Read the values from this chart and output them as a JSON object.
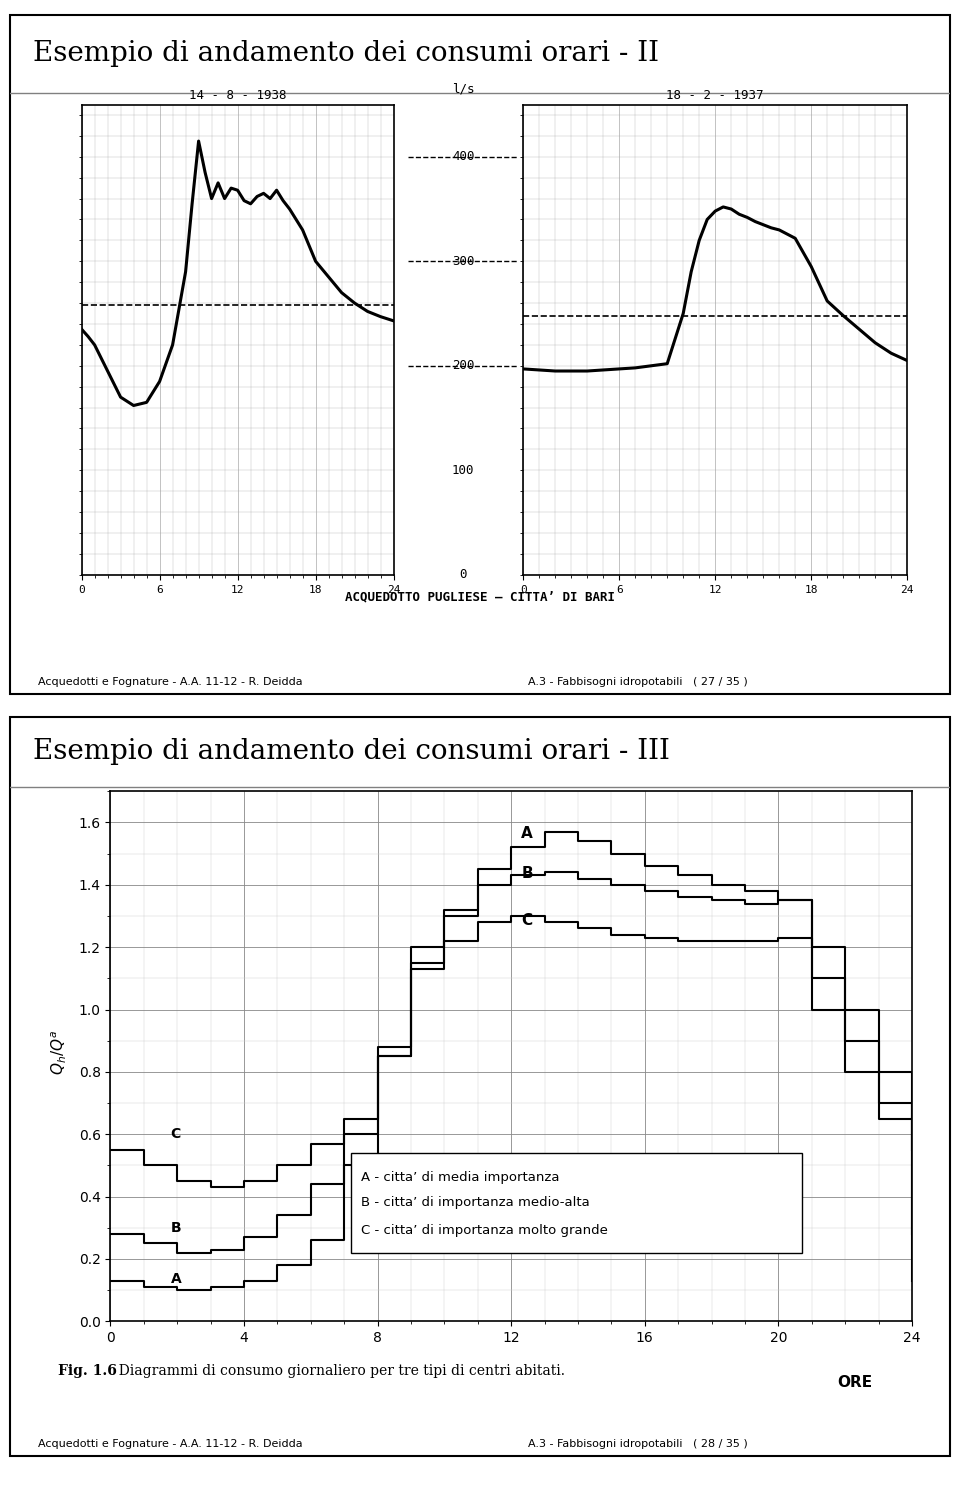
{
  "title1": "Esempio di andamento dei consumi orari - II",
  "title2": "Esempio di andamento dei consumi orari - III",
  "subtitle1_left": "14 - 8 - 1938",
  "subtitle1_right": "18 - 2 - 1937",
  "yunit": "l/s",
  "xlabel_bottom": "ACQUEDOTTO PUGLIESE – CITTA’ DI BARI",
  "footer1_left": "Acquedotti e Fognature - A.A. 11-12 - R. Deidda",
  "footer1_right": "A.3 - Fabbisogni idropotabili   ( 27 / 35 )",
  "footer2_left": "Acquedotti e Fognature - A.A. 11-12 - R. Deidda",
  "footer2_right": "A.3 - Fabbisogni idropotabili   ( 28 / 35 )",
  "fig_caption_bold": "Fig. 1.6",
  "fig_caption_normal": "  Diagrammi di consumo giornaliero per tre tipi di centri abitati.",
  "yticks_upper": [
    0,
    100,
    200,
    300,
    400
  ],
  "xticks_upper": [
    0,
    6,
    12,
    18,
    24
  ],
  "curve1_x": [
    0,
    0.5,
    1,
    2,
    3,
    4,
    5,
    6,
    7,
    8,
    8.5,
    9,
    9.5,
    10,
    10.5,
    11,
    11.5,
    12,
    12.5,
    13,
    13.5,
    14,
    14.5,
    15,
    15.5,
    16,
    17,
    18,
    19,
    20,
    21,
    22,
    23,
    24
  ],
  "curve1_y": [
    235,
    228,
    220,
    195,
    170,
    162,
    165,
    185,
    220,
    290,
    355,
    415,
    385,
    360,
    375,
    360,
    370,
    368,
    358,
    355,
    362,
    365,
    360,
    368,
    358,
    350,
    330,
    300,
    285,
    270,
    260,
    252,
    247,
    243
  ],
  "curve2_x": [
    0,
    1,
    2,
    3,
    4,
    5,
    6,
    7,
    8,
    9,
    10,
    10.5,
    11,
    11.5,
    12,
    12.5,
    13,
    13.5,
    14,
    14.5,
    15,
    15.5,
    16,
    17,
    18,
    19,
    20,
    21,
    22,
    23,
    24
  ],
  "curve2_y": [
    197,
    196,
    195,
    195,
    195,
    196,
    197,
    198,
    200,
    202,
    250,
    290,
    320,
    340,
    348,
    352,
    350,
    345,
    342,
    338,
    335,
    332,
    330,
    322,
    295,
    262,
    248,
    235,
    222,
    212,
    205
  ],
  "dashed_line1": 258,
  "dashed_line2": 248,
  "yticks_lower": [
    0.0,
    0.2,
    0.4,
    0.6,
    0.8,
    1.0,
    1.2,
    1.4,
    1.6
  ],
  "xticks_lower": [
    0,
    4,
    8,
    12,
    16,
    20,
    24
  ],
  "ylabel_lower": "Q_h/Q^a",
  "xlabel_lower": "ORE",
  "legend_A": "A - citta’ di media importanza",
  "legend_B": "B - citta’ di importanza medio-alta",
  "legend_C": "C - citta’ di importanza molto grande",
  "curveA_x": [
    0,
    1,
    2,
    3,
    4,
    5,
    6,
    7,
    8,
    9,
    10,
    11,
    12,
    13,
    14,
    15,
    16,
    17,
    18,
    19,
    20,
    21,
    22,
    23,
    24
  ],
  "curveA_y": [
    0.13,
    0.11,
    0.1,
    0.11,
    0.13,
    0.18,
    0.26,
    0.5,
    0.85,
    1.15,
    1.3,
    1.45,
    1.52,
    1.57,
    1.54,
    1.5,
    1.46,
    1.43,
    1.4,
    1.38,
    1.35,
    1.0,
    0.8,
    0.65,
    0.13
  ],
  "curveB_x": [
    0,
    1,
    2,
    3,
    4,
    5,
    6,
    7,
    8,
    9,
    10,
    11,
    12,
    13,
    14,
    15,
    16,
    17,
    18,
    19,
    20,
    21,
    22,
    23,
    24
  ],
  "curveB_y": [
    0.28,
    0.25,
    0.22,
    0.23,
    0.27,
    0.34,
    0.44,
    0.6,
    0.88,
    1.2,
    1.32,
    1.4,
    1.43,
    1.44,
    1.42,
    1.4,
    1.38,
    1.36,
    1.35,
    1.34,
    1.35,
    1.1,
    0.9,
    0.7,
    0.28
  ],
  "curveC_x": [
    0,
    1,
    2,
    3,
    4,
    5,
    6,
    7,
    8,
    9,
    10,
    11,
    12,
    13,
    14,
    15,
    16,
    17,
    18,
    19,
    20,
    21,
    22,
    23,
    24
  ],
  "curveC_y": [
    0.55,
    0.5,
    0.45,
    0.43,
    0.45,
    0.5,
    0.57,
    0.65,
    0.85,
    1.13,
    1.22,
    1.28,
    1.3,
    1.28,
    1.26,
    1.24,
    1.23,
    1.22,
    1.22,
    1.22,
    1.23,
    1.2,
    1.0,
    0.8,
    0.55
  ],
  "bg_color": "#ffffff",
  "line_color": "#000000",
  "grid_color": "#aaaaaa",
  "frame_color": "#000000"
}
